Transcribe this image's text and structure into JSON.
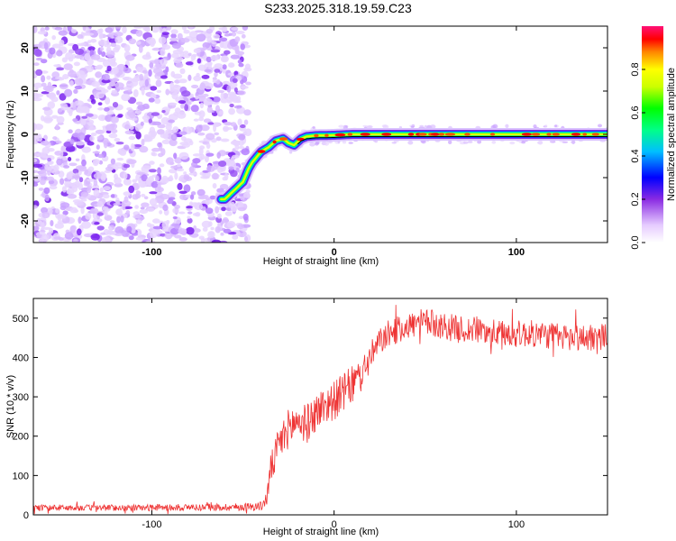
{
  "title": "S233.2025.318.19.59.C23",
  "chart_data": [
    {
      "type": "heatmap",
      "xlabel": "Height of straight line (km)",
      "ylabel": "Frequency (Hz)",
      "xlim": [
        -165,
        150
      ],
      "ylim": [
        -25,
        25
      ],
      "xticks": [
        -100,
        0,
        100
      ],
      "yticks": [
        20,
        10,
        0,
        -10,
        -20
      ],
      "noise_region_x": [
        -165,
        -47
      ],
      "trace": {
        "x": [
          -60,
          -55,
          -50,
          -47,
          -45,
          -42,
          -40,
          -36,
          -32,
          -28,
          -25,
          -22,
          -18,
          -15,
          -10,
          0,
          10,
          50,
          100,
          150
        ],
        "y": [
          -15,
          -13,
          -11,
          -8,
          -6.5,
          -5,
          -4,
          -3,
          -1.5,
          -1,
          -2,
          -2.5,
          -1,
          -0.5,
          -0.3,
          -0.2,
          0,
          0,
          0,
          0
        ]
      },
      "colorbar": {
        "label": "Normalized spectral amplitude",
        "range": [
          0,
          1
        ],
        "ticks": [
          0,
          0.2,
          0.4,
          0.6,
          0.8
        ]
      }
    },
    {
      "type": "line",
      "xlabel": "Height of straight line (km)",
      "ylabel": "SNR (10 * v/v)",
      "xlim": [
        -165,
        150
      ],
      "ylim": [
        0,
        550
      ],
      "xticks": [
        -100,
        0,
        100
      ],
      "yticks": [
        0,
        100,
        200,
        300,
        400,
        500
      ],
      "series": [
        {
          "color": "#ee3333",
          "x": [
            -165,
            -100,
            -50,
            -40,
            -37,
            -35,
            -30,
            -25,
            -20,
            -15,
            -10,
            -5,
            0,
            5,
            10,
            15,
            20,
            25,
            30,
            40,
            50,
            60,
            70,
            80,
            90,
            100,
            110,
            120,
            130,
            140,
            150
          ],
          "y": [
            18,
            18,
            20,
            22,
            40,
            110,
            180,
            220,
            240,
            230,
            260,
            280,
            290,
            310,
            330,
            360,
            400,
            440,
            460,
            480,
            490,
            480,
            470,
            470,
            460,
            460,
            460,
            455,
            450,
            450,
            455
          ],
          "noise": [
            8,
            8,
            10,
            12,
            20,
            40,
            50,
            50,
            50,
            50,
            50,
            50,
            50,
            50,
            50,
            40,
            40,
            35,
            35,
            35,
            35,
            35,
            35,
            35,
            35,
            35,
            35,
            35,
            35,
            35,
            35
          ]
        }
      ]
    }
  ]
}
